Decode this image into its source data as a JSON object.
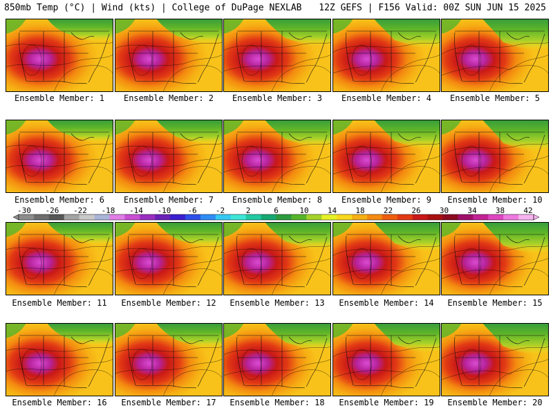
{
  "header": {
    "left_title": "850mb Temp (°C) | Wind (kts) | College of DuPage NEXLAB",
    "right_title": "12Z GEFS | F156 Valid: 00Z SUN JUN 15 2025"
  },
  "colorbar": {
    "ticks": [
      "-30",
      "-26",
      "-22",
      "-18",
      "-14",
      "-10",
      "-6",
      "-2",
      "2",
      "6",
      "10",
      "14",
      "18",
      "22",
      "26",
      "30",
      "34",
      "38",
      "42"
    ],
    "colors": [
      "#8c8c8c",
      "#6e6e6e",
      "#575757",
      "#a3a3a3",
      "#c9c9c9",
      "#aab4d8",
      "#e07ee6",
      "#c84fd2",
      "#9a2fc0",
      "#6a22b8",
      "#3a1fd0",
      "#2e4fe8",
      "#2e8cf5",
      "#35c8f2",
      "#3ee6d6",
      "#22c9a3",
      "#16a872",
      "#2c9a3e",
      "#56b42a",
      "#a4d22a",
      "#e6f028",
      "#f8d81e",
      "#f6b014",
      "#f48a10",
      "#ee5e0e",
      "#e23a14",
      "#c81818",
      "#a81010",
      "#8a0a20",
      "#a0106a",
      "#c22494",
      "#de46c0",
      "#ee7ae0",
      "#f7b4f0"
    ]
  },
  "panels": [
    {
      "label": "Ensemble Member: 1"
    },
    {
      "label": "Ensemble Member: 2"
    },
    {
      "label": "Ensemble Member: 3"
    },
    {
      "label": "Ensemble Member: 4"
    },
    {
      "label": "Ensemble Member: 5"
    },
    {
      "label": "Ensemble Member: 6"
    },
    {
      "label": "Ensemble Member: 7"
    },
    {
      "label": "Ensemble Member: 8"
    },
    {
      "label": "Ensemble Member: 9"
    },
    {
      "label": "Ensemble Member: 10"
    },
    {
      "label": "Ensemble Member: 11"
    },
    {
      "label": "Ensemble Member: 12"
    },
    {
      "label": "Ensemble Member: 13"
    },
    {
      "label": "Ensemble Member: 14"
    },
    {
      "label": "Ensemble Member: 15"
    },
    {
      "label": "Ensemble Member: 16"
    },
    {
      "label": "Ensemble Member: 17"
    },
    {
      "label": "Ensemble Member: 18"
    },
    {
      "label": "Ensemble Member: 19"
    },
    {
      "label": "Ensemble Member: 20"
    }
  ]
}
